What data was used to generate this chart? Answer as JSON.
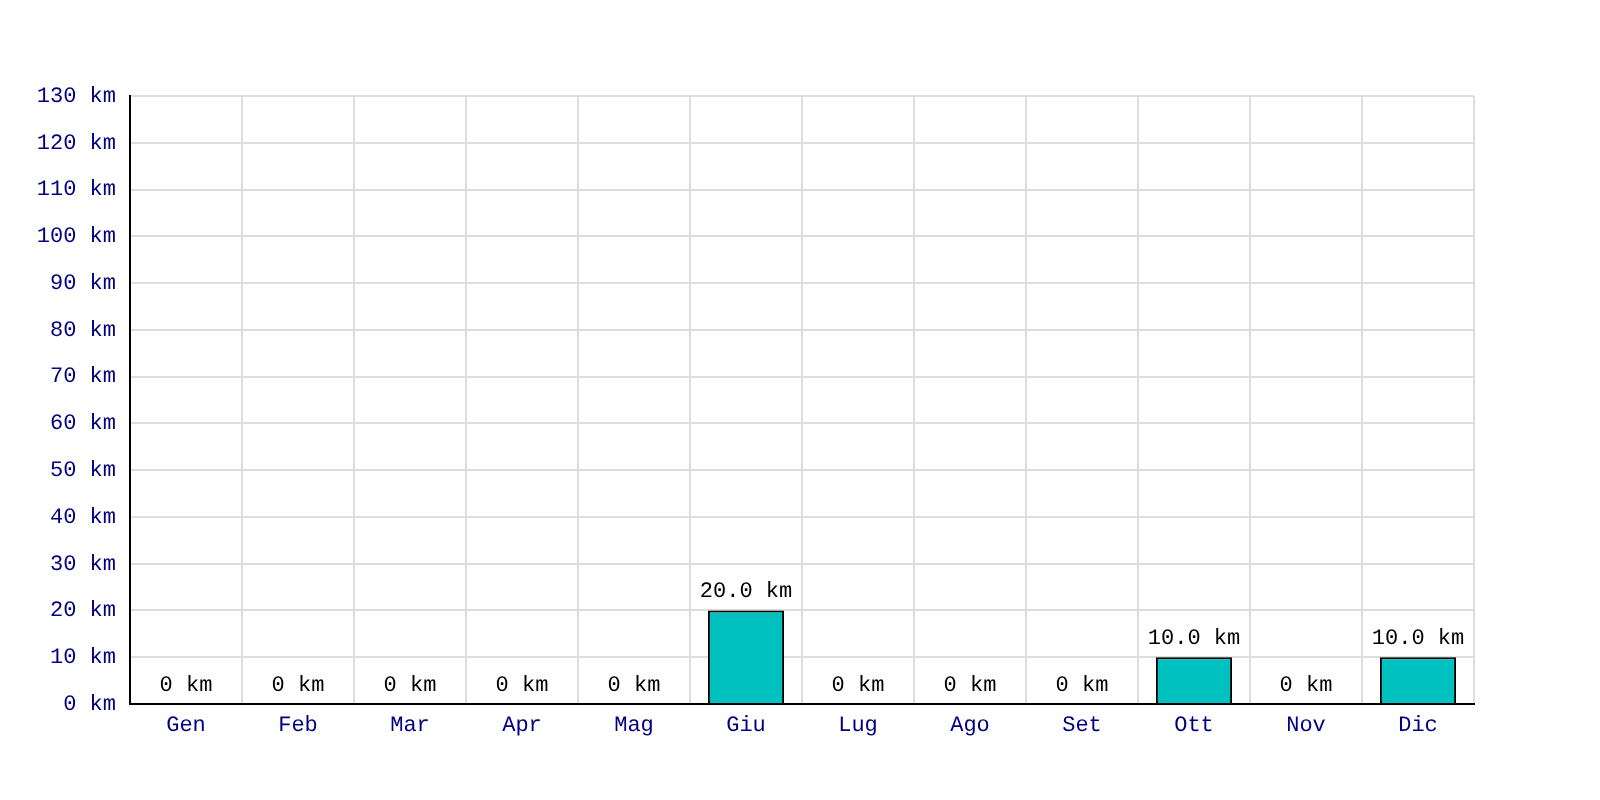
{
  "chart_data": {
    "type": "bar",
    "categories": [
      "Gen",
      "Feb",
      "Mar",
      "Apr",
      "Mag",
      "Giu",
      "Lug",
      "Ago",
      "Set",
      "Ott",
      "Nov",
      "Dic"
    ],
    "values": [
      0,
      0,
      0,
      0,
      0,
      20,
      0,
      0,
      0,
      10,
      0,
      10
    ],
    "value_labels": [
      "0 km",
      "0 km",
      "0 km",
      "0 km",
      "0 km",
      "20.0 km",
      "0 km",
      "0 km",
      "0 km",
      "10.0 km",
      "0 km",
      "10.0 km"
    ],
    "color": "#00c0c0",
    "ylim": [
      0,
      130
    ],
    "yticks": [
      {
        "value": 0,
        "label": "0 km"
      },
      {
        "value": 10,
        "label": "10 km"
      },
      {
        "value": 20,
        "label": "20 km"
      },
      {
        "value": 30,
        "label": "30 km"
      },
      {
        "value": 40,
        "label": "40 km"
      },
      {
        "value": 50,
        "label": "50 km"
      },
      {
        "value": 60,
        "label": "60 km"
      },
      {
        "value": 70,
        "label": "70 km"
      },
      {
        "value": 80,
        "label": "80 km"
      },
      {
        "value": 90,
        "label": "90 km"
      },
      {
        "value": 100,
        "label": "100 km"
      },
      {
        "value": 110,
        "label": "110 km"
      },
      {
        "value": 120,
        "label": "120 km"
      },
      {
        "value": 130,
        "label": "130 km"
      }
    ],
    "grid": true
  }
}
